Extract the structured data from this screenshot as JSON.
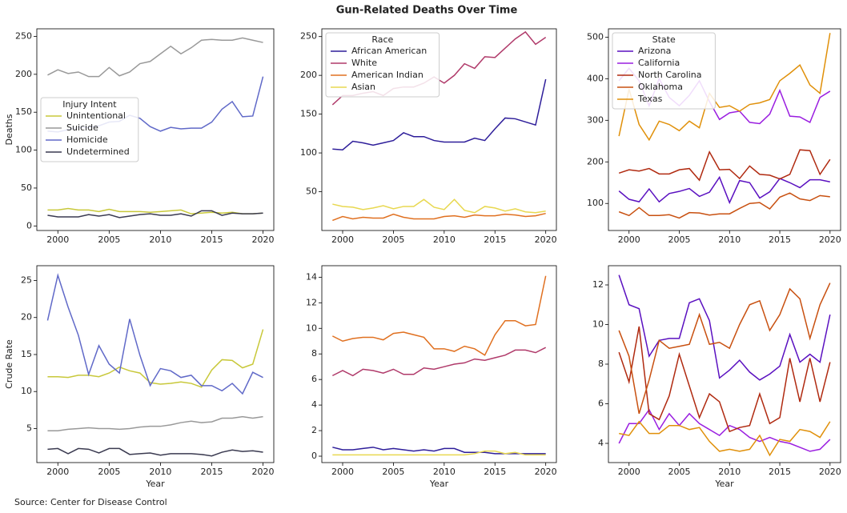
{
  "title": "Gun-Related Deaths Over Time",
  "source": "Source: Center for Disease Control",
  "chart_data": [
    {
      "type": "line",
      "ylabel": "Deaths",
      "legend": "center left",
      "legend_title": "Injury Intent",
      "x": [
        1999,
        2000,
        2001,
        2002,
        2003,
        2004,
        2005,
        2006,
        2007,
        2008,
        2009,
        2010,
        2011,
        2012,
        2013,
        2014,
        2015,
        2016,
        2017,
        2018,
        2019,
        2020
      ],
      "xlim": [
        1997.95,
        2021.05
      ],
      "xticks": [
        2000,
        2005,
        2010,
        2015,
        2020
      ],
      "ylim": [
        -6,
        260
      ],
      "yticks": [
        0,
        50,
        100,
        150,
        200,
        250
      ],
      "series": [
        {
          "name": "Unintentional",
          "color": "#c8c83a",
          "values": [
            21,
            21,
            23,
            21,
            21,
            19,
            22,
            19,
            19,
            19,
            18,
            19,
            20,
            21,
            16,
            17,
            18,
            17,
            18,
            16,
            16,
            17
          ]
        },
        {
          "name": "Suicide",
          "color": "#999999",
          "values": [
            199,
            206,
            201,
            203,
            197,
            197,
            209,
            198,
            203,
            214,
            217,
            227,
            237,
            227,
            235,
            245,
            246,
            245,
            245,
            248,
            245,
            242
          ]
        },
        {
          "name": "Homicide",
          "color": "#6069c8",
          "values": [
            125,
            124,
            127,
            130,
            130,
            132,
            137,
            138,
            146,
            142,
            131,
            125,
            130,
            128,
            129,
            129,
            137,
            154,
            164,
            144,
            145,
            197
          ]
        },
        {
          "name": "Undetermined",
          "color": "#3a3a50",
          "values": [
            14,
            12,
            12,
            12,
            15,
            13,
            15,
            11,
            13,
            15,
            16,
            14,
            14,
            16,
            13,
            20,
            20,
            14,
            17,
            16,
            16,
            17
          ]
        }
      ]
    },
    {
      "type": "line",
      "legend": "upper left",
      "legend_title": "Race",
      "x": [
        1999,
        2000,
        2001,
        2002,
        2003,
        2004,
        2005,
        2006,
        2007,
        2008,
        2009,
        2010,
        2011,
        2012,
        2013,
        2014,
        2015,
        2016,
        2017,
        2018,
        2019,
        2020
      ],
      "xlim": [
        1997.95,
        2021.05
      ],
      "xticks": [
        2000,
        2005,
        2010,
        2015,
        2020
      ],
      "ylim": [
        0,
        260
      ],
      "yticks": [
        50,
        100,
        150,
        200,
        250
      ],
      "series": [
        {
          "name": "African American",
          "color": "#2e1e9a",
          "values": [
            105,
            104,
            115,
            113,
            110,
            113,
            116,
            126,
            121,
            121,
            116,
            114,
            114,
            114,
            119,
            116,
            131,
            145,
            144,
            140,
            136,
            195
          ]
        },
        {
          "name": "White",
          "color": "#b03a6a",
          "values": [
            162,
            174,
            174,
            177,
            179,
            174,
            183,
            185,
            185,
            190,
            198,
            190,
            200,
            215,
            209,
            224,
            223,
            235,
            247,
            256,
            240,
            249
          ]
        },
        {
          "name": "American Indian",
          "color": "#e07020",
          "values": [
            13,
            18,
            15,
            17,
            16,
            16,
            21,
            17,
            15,
            15,
            15,
            18,
            19,
            17,
            20,
            19,
            19,
            21,
            20,
            18,
            19,
            22
          ]
        },
        {
          "name": "Asian",
          "color": "#e8d850",
          "values": [
            34,
            31,
            30,
            27,
            29,
            32,
            28,
            31,
            31,
            40,
            30,
            27,
            40,
            26,
            23,
            31,
            29,
            25,
            28,
            24,
            23,
            25
          ]
        }
      ]
    },
    {
      "type": "line",
      "legend": "upper left",
      "legend_title": "State",
      "x": [
        1999,
        2000,
        2001,
        2002,
        2003,
        2004,
        2005,
        2006,
        2007,
        2008,
        2009,
        2010,
        2011,
        2012,
        2013,
        2014,
        2015,
        2016,
        2017,
        2018,
        2019,
        2020
      ],
      "xlim": [
        1997.95,
        2021.05
      ],
      "xticks": [
        2000,
        2005,
        2010,
        2015,
        2020
      ],
      "ylim": [
        35,
        520
      ],
      "yticks": [
        100,
        200,
        300,
        400,
        500
      ],
      "series": [
        {
          "name": "Arizona",
          "color": "#5a10c0",
          "values": [
            130,
            110,
            104,
            135,
            104,
            124,
            129,
            136,
            117,
            127,
            163,
            102,
            155,
            150,
            113,
            128,
            160,
            150,
            138,
            157,
            157,
            152
          ]
        },
        {
          "name": "California",
          "color": "#9a1ee0",
          "values": [
            395,
            425,
            395,
            335,
            400,
            355,
            335,
            360,
            395,
            345,
            302,
            318,
            322,
            295,
            292,
            315,
            372,
            310,
            308,
            295,
            355,
            370
          ]
        },
        {
          "name": "North Carolina",
          "color": "#b02a10",
          "values": [
            173,
            181,
            178,
            184,
            171,
            171,
            181,
            184,
            156,
            224,
            181,
            182,
            160,
            190,
            170,
            168,
            159,
            170,
            229,
            227,
            170,
            206
          ]
        },
        {
          "name": "Oklahoma",
          "color": "#c85010",
          "values": [
            80,
            71,
            90,
            71,
            71,
            73,
            65,
            78,
            77,
            72,
            75,
            75,
            88,
            100,
            102,
            87,
            115,
            125,
            111,
            107,
            119,
            116
          ]
        },
        {
          "name": "Texas",
          "color": "#e0900a",
          "values": [
            262,
            375,
            290,
            253,
            298,
            290,
            275,
            298,
            282,
            365,
            331,
            335,
            322,
            338,
            342,
            350,
            395,
            413,
            433,
            385,
            365,
            510
          ]
        }
      ]
    },
    {
      "type": "line",
      "ylabel": "Crude Rate",
      "xlabel": "Year",
      "x": [
        1999,
        2000,
        2001,
        2002,
        2003,
        2004,
        2005,
        2006,
        2007,
        2008,
        2009,
        2010,
        2011,
        2012,
        2013,
        2014,
        2015,
        2016,
        2017,
        2018,
        2019,
        2020
      ],
      "xlim": [
        1997.95,
        2021.05
      ],
      "xticks": [
        2000,
        2005,
        2010,
        2015,
        2020
      ],
      "ylim": [
        0.4,
        27
      ],
      "yticks": [
        5,
        10,
        15,
        20,
        25
      ],
      "series": [
        {
          "color": "#c8c83a",
          "values": [
            12,
            12,
            11.9,
            12.2,
            12.2,
            12,
            12.5,
            13.3,
            12.8,
            12.5,
            11.2,
            11,
            11.1,
            11.3,
            11.1,
            10.6,
            12.9,
            14.3,
            14.2,
            13.2,
            13.7,
            18.4
          ]
        },
        {
          "color": "#999999",
          "values": [
            4.7,
            4.7,
            4.9,
            5,
            5.1,
            5,
            5,
            4.9,
            5,
            5.2,
            5.3,
            5.3,
            5.5,
            5.8,
            6,
            5.8,
            5.9,
            6.4,
            6.4,
            6.6,
            6.4,
            6.6
          ]
        },
        {
          "color": "#6069c8",
          "values": [
            19.6,
            25.7,
            21.4,
            17.6,
            12.3,
            16.2,
            13.7,
            12.5,
            19.8,
            14.9,
            10.8,
            13.1,
            12.8,
            11.9,
            12.2,
            10.8,
            10.8,
            10.1,
            11.1,
            9.7,
            12.6,
            11.9
          ]
        },
        {
          "color": "#3a3a50",
          "values": [
            2.2,
            2.3,
            1.6,
            2.3,
            2.2,
            1.7,
            2.3,
            2.3,
            1.5,
            1.6,
            1.7,
            1.4,
            1.6,
            1.6,
            1.6,
            1.5,
            1.3,
            1.8,
            2.1,
            1.9,
            2,
            1.8
          ]
        }
      ]
    },
    {
      "type": "line",
      "xlabel": "Year",
      "x": [
        1999,
        2000,
        2001,
        2002,
        2003,
        2004,
        2005,
        2006,
        2007,
        2008,
        2009,
        2010,
        2011,
        2012,
        2013,
        2014,
        2015,
        2016,
        2017,
        2018,
        2019,
        2020
      ],
      "xlim": [
        1997.95,
        2021.05
      ],
      "xticks": [
        2000,
        2005,
        2010,
        2015,
        2020
      ],
      "ylim": [
        -0.5,
        14.9
      ],
      "yticks": [
        0,
        2,
        4,
        6,
        8,
        10,
        12,
        14
      ],
      "series": [
        {
          "color": "#2e1e9a",
          "values": [
            0.7,
            0.5,
            0.5,
            0.6,
            0.7,
            0.5,
            0.6,
            0.5,
            0.4,
            0.5,
            0.4,
            0.6,
            0.6,
            0.3,
            0.3,
            0.3,
            0.2,
            0.2,
            0.2,
            0.2,
            0.2,
            0.2
          ]
        },
        {
          "color": "#b03a6a",
          "values": [
            6.3,
            6.7,
            6.3,
            6.8,
            6.7,
            6.5,
            6.8,
            6.4,
            6.4,
            6.9,
            6.8,
            7,
            7.2,
            7.3,
            7.6,
            7.5,
            7.7,
            7.9,
            8.3,
            8.3,
            8.1,
            8.5
          ]
        },
        {
          "color": "#e07020",
          "values": [
            9.4,
            9,
            9.2,
            9.3,
            9.3,
            9.1,
            9.6,
            9.7,
            9.5,
            9.3,
            8.4,
            8.4,
            8.2,
            8.6,
            8.4,
            7.9,
            9.5,
            10.6,
            10.6,
            10.2,
            10.3,
            14.1
          ]
        },
        {
          "color": "#e8d850",
          "values": [
            0.1,
            0.1,
            0.1,
            0.1,
            0.1,
            0.1,
            0.1,
            0.1,
            0.1,
            0.1,
            0.1,
            0.1,
            0.1,
            0.1,
            0.2,
            0.4,
            0.4,
            0.2,
            0.3,
            0.1,
            0.1,
            0.1
          ]
        }
      ]
    },
    {
      "type": "line",
      "xlabel": "Year",
      "x": [
        1999,
        2000,
        2001,
        2002,
        2003,
        2004,
        2005,
        2006,
        2007,
        2008,
        2009,
        2010,
        2011,
        2012,
        2013,
        2014,
        2015,
        2016,
        2017,
        2018,
        2019,
        2020
      ],
      "xlim": [
        1997.95,
        2021.05
      ],
      "xticks": [
        2000,
        2005,
        2010,
        2015,
        2020
      ],
      "ylim": [
        3.03,
        12.97
      ],
      "yticks": [
        4,
        6,
        8,
        10,
        12
      ],
      "series": [
        {
          "color": "#5a10c0",
          "values": [
            12.5,
            11,
            10.8,
            8.4,
            9.2,
            9.3,
            9.3,
            11.1,
            11.3,
            10.2,
            7.3,
            7.7,
            8.2,
            7.6,
            7.2,
            7.5,
            7.9,
            9.5,
            8.1,
            8.5,
            8.1,
            10.5
          ]
        },
        {
          "color": "#9a1ee0",
          "values": [
            4,
            5,
            5,
            5.7,
            4.7,
            5.5,
            4.9,
            5.5,
            5,
            4.7,
            4.4,
            4.9,
            4.7,
            4.3,
            4.1,
            4.3,
            4.1,
            4,
            3.8,
            3.6,
            3.7,
            4.2
          ]
        },
        {
          "color": "#b02a10",
          "values": [
            8.6,
            7.1,
            9.9,
            5.5,
            5.2,
            6.4,
            8.5,
            6.9,
            5.3,
            6.5,
            6.1,
            4.6,
            4.8,
            4.9,
            6.5,
            5,
            5.3,
            8.3,
            6.1,
            8.3,
            6.1,
            8.1
          ]
        },
        {
          "color": "#c85010",
          "values": [
            9.7,
            8.4,
            5.5,
            7.2,
            9.2,
            8.8,
            8.9,
            9,
            10.5,
            9,
            9.1,
            8.8,
            10,
            11,
            11.2,
            9.7,
            10.5,
            11.8,
            11.3,
            9.3,
            11,
            12.1
          ]
        },
        {
          "color": "#e0900a",
          "values": [
            4.5,
            4.4,
            5.1,
            4.5,
            4.5,
            4.9,
            4.9,
            4.7,
            4.8,
            4.1,
            3.6,
            3.7,
            3.6,
            3.7,
            4.4,
            3.4,
            4.2,
            4.1,
            4.7,
            4.6,
            4.3,
            5.1
          ]
        }
      ]
    }
  ]
}
